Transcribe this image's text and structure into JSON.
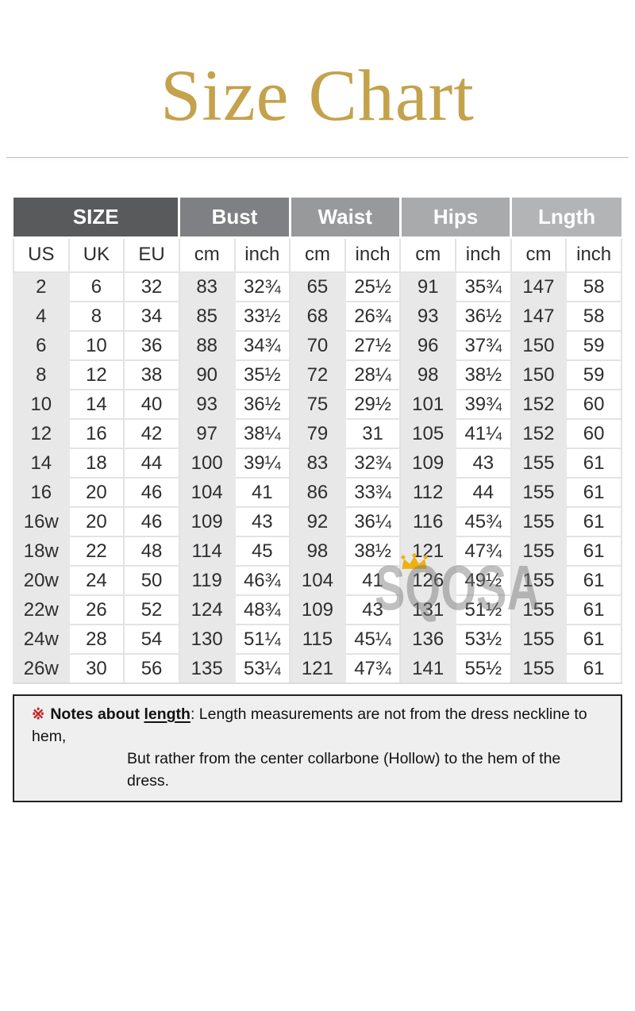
{
  "header": {
    "title": "Size Chart",
    "title_color": "#c4a24c"
  },
  "watermark": {
    "text": "SQOSA",
    "crown_color": "#edb211"
  },
  "chart_data": {
    "type": "table",
    "title": "Size Chart",
    "column_groups": [
      {
        "label": "SIZE",
        "bg": "#595a5c",
        "columns": [
          "US",
          "UK",
          "EU"
        ]
      },
      {
        "label": "Bust",
        "bg": "#7f8083",
        "columns": [
          "cm",
          "inch"
        ]
      },
      {
        "label": "Waist",
        "bg": "#98999b",
        "columns": [
          "cm",
          "inch"
        ]
      },
      {
        "label": "Hips",
        "bg": "#a9aaac",
        "columns": [
          "cm",
          "inch"
        ]
      },
      {
        "label": "Lngth",
        "bg": "#b3b4b6",
        "columns": [
          "cm",
          "inch"
        ]
      }
    ],
    "rows": [
      [
        "2",
        "6",
        "32",
        "83",
        "32¾",
        "65",
        "25½",
        "91",
        "35¾",
        "147",
        "58"
      ],
      [
        "4",
        "8",
        "34",
        "85",
        "33½",
        "68",
        "26¾",
        "93",
        "36½",
        "147",
        "58"
      ],
      [
        "6",
        "10",
        "36",
        "88",
        "34¾",
        "70",
        "27½",
        "96",
        "37¾",
        "150",
        "59"
      ],
      [
        "8",
        "12",
        "38",
        "90",
        "35½",
        "72",
        "28¼",
        "98",
        "38½",
        "150",
        "59"
      ],
      [
        "10",
        "14",
        "40",
        "93",
        "36½",
        "75",
        "29½",
        "101",
        "39¾",
        "152",
        "60"
      ],
      [
        "12",
        "16",
        "42",
        "97",
        "38¼",
        "79",
        "31",
        "105",
        "41¼",
        "152",
        "60"
      ],
      [
        "14",
        "18",
        "44",
        "100",
        "39¼",
        "83",
        "32¾",
        "109",
        "43",
        "155",
        "61"
      ],
      [
        "16",
        "20",
        "46",
        "104",
        "41",
        "86",
        "33¾",
        "112",
        "44",
        "155",
        "61"
      ],
      [
        "16w",
        "20",
        "46",
        "109",
        "43",
        "92",
        "36¼",
        "116",
        "45¾",
        "155",
        "61"
      ],
      [
        "18w",
        "22",
        "48",
        "114",
        "45",
        "98",
        "38½",
        "121",
        "47¾",
        "155",
        "61"
      ],
      [
        "20w",
        "24",
        "50",
        "119",
        "46¾",
        "104",
        "41",
        "126",
        "49½",
        "155",
        "61"
      ],
      [
        "22w",
        "26",
        "52",
        "124",
        "48¾",
        "109",
        "43",
        "131",
        "51½",
        "155",
        "61"
      ],
      [
        "24w",
        "28",
        "54",
        "130",
        "51¼",
        "115",
        "45¼",
        "136",
        "53½",
        "155",
        "61"
      ],
      [
        "26w",
        "30",
        "56",
        "135",
        "53¼",
        "121",
        "47¾",
        "141",
        "55½",
        "155",
        "61"
      ]
    ]
  },
  "notes": {
    "marker": "※",
    "label_bold": "Notes about ",
    "label_underlined": "length",
    "line1": ": Length measurements are not from the dress neckline to hem,",
    "line2": "But rather from the center collarbone (Hollow) to the hem of the dress."
  }
}
